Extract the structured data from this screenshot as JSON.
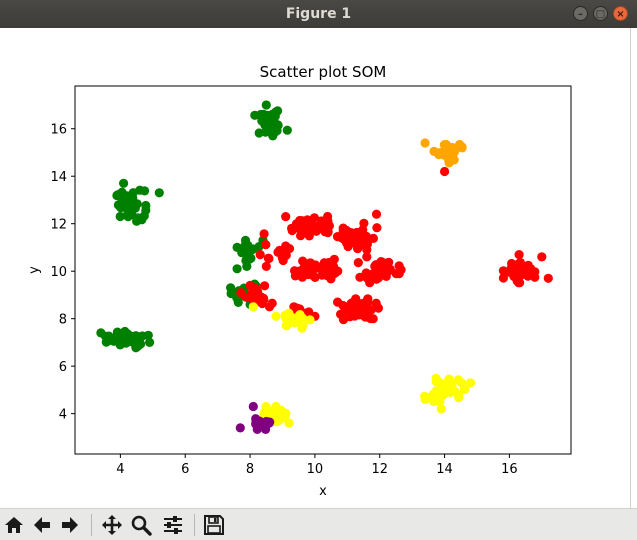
{
  "window": {
    "title": "Figure 1"
  },
  "icons": {
    "minimize": "minimize-icon",
    "maximize": "maximize-icon",
    "close": "close-icon",
    "home": "home-icon",
    "back": "arrow-left-icon",
    "forward": "arrow-right-icon",
    "pan": "pan-icon",
    "zoom": "magnifier-icon",
    "configure": "sliders-icon",
    "save": "floppy-disk-icon"
  },
  "colors": {
    "green": "#008000",
    "red": "#ff0000",
    "orange": "#ffa500",
    "yellow": "#ffff00",
    "purple": "#800080"
  },
  "chart_data": {
    "type": "scatter",
    "title": "Scatter plot SOM",
    "xlabel": "x",
    "ylabel": "y",
    "xlim": [
      2.6,
      17.9
    ],
    "ylim": [
      2.3,
      17.8
    ],
    "xticks": [
      4,
      6,
      8,
      10,
      12,
      14,
      16
    ],
    "yticks": [
      4,
      6,
      8,
      10,
      12,
      14,
      16
    ],
    "grid": false,
    "legend": "none",
    "clusters": [
      {
        "color": "green",
        "center": [
          8.6,
          16.2
        ],
        "spread": [
          0.25,
          0.25
        ],
        "count": 40,
        "extra": [
          [
            8.5,
            17.0
          ],
          [
            8.7,
            15.7
          ]
        ]
      },
      {
        "color": "green",
        "center": [
          4.3,
          12.8
        ],
        "spread": [
          0.22,
          0.3
        ],
        "count": 40,
        "extra": [
          [
            5.2,
            13.3
          ],
          [
            4.1,
            13.7
          ],
          [
            4.5,
            12.1
          ]
        ]
      },
      {
        "color": "green",
        "center": [
          4.2,
          7.1
        ],
        "spread": [
          0.3,
          0.17
        ],
        "count": 38,
        "extra": [
          [
            3.4,
            7.4
          ],
          [
            4.9,
            7.0
          ]
        ]
      },
      {
        "color": "green",
        "center": [
          8.0,
          10.9
        ],
        "spread": [
          0.15,
          0.25
        ],
        "count": 14,
        "extra": [
          [
            8.4,
            11.3
          ],
          [
            7.6,
            11.0
          ],
          [
            7.9,
            10.2
          ]
        ]
      },
      {
        "color": "green",
        "center": [
          7.9,
          9.1
        ],
        "spread": [
          0.22,
          0.3
        ],
        "count": 12,
        "extra": [
          [
            7.4,
            9.3
          ],
          [
            7.6,
            10.1
          ],
          [
            8.0,
            8.6
          ]
        ]
      },
      {
        "color": "red",
        "center": [
          9.9,
          11.9
        ],
        "spread": [
          0.35,
          0.2
        ],
        "count": 38,
        "extra": [
          [
            9.1,
            12.3
          ],
          [
            10.4,
            12.1
          ]
        ]
      },
      {
        "color": "red",
        "center": [
          11.3,
          11.5
        ],
        "spread": [
          0.3,
          0.28
        ],
        "count": 36,
        "extra": [
          [
            11.9,
            12.4
          ],
          [
            11.6,
            10.9
          ]
        ]
      },
      {
        "color": "red",
        "center": [
          10.0,
          10.1
        ],
        "spread": [
          0.32,
          0.22
        ],
        "count": 36,
        "extra": [
          [
            9.4,
            9.8
          ],
          [
            10.6,
            10.5
          ]
        ]
      },
      {
        "color": "red",
        "center": [
          12.0,
          10.0
        ],
        "spread": [
          0.3,
          0.22
        ],
        "count": 34,
        "extra": [
          [
            12.6,
            9.9
          ],
          [
            11.6,
            10.6
          ]
        ]
      },
      {
        "color": "red",
        "center": [
          11.3,
          8.4
        ],
        "spread": [
          0.3,
          0.22
        ],
        "count": 36,
        "extra": [
          [
            10.7,
            8.7
          ],
          [
            11.8,
            8.0
          ]
        ]
      },
      {
        "color": "red",
        "center": [
          8.8,
          10.8
        ],
        "spread": [
          0.3,
          0.35
        ],
        "count": 14,
        "extra": [
          [
            8.5,
            10.2
          ]
        ]
      },
      {
        "color": "red",
        "center": [
          8.2,
          8.9
        ],
        "spread": [
          0.22,
          0.22
        ],
        "count": 18,
        "extra": [
          [
            8.6,
            8.5
          ],
          [
            8.0,
            9.4
          ]
        ]
      },
      {
        "color": "red",
        "center": [
          9.6,
          8.3
        ],
        "spread": [
          0.2,
          0.12
        ],
        "count": 8,
        "extra": [
          [
            10.0,
            8.1
          ]
        ]
      },
      {
        "color": "red",
        "center": [
          16.3,
          10.0
        ],
        "spread": [
          0.22,
          0.22
        ],
        "count": 36,
        "extra": [
          [
            17.2,
            9.7
          ],
          [
            17.0,
            10.6
          ],
          [
            16.3,
            10.7
          ]
        ]
      },
      {
        "color": "orange",
        "center": [
          14.1,
          15.0
        ],
        "spread": [
          0.2,
          0.2
        ],
        "count": 40,
        "extra": [
          [
            13.4,
            15.4
          ]
        ]
      },
      {
        "color": "red",
        "center": [
          14.0,
          14.2
        ],
        "spread": [
          0.0,
          0.0
        ],
        "count": 1,
        "extra": []
      },
      {
        "color": "yellow",
        "center": [
          9.3,
          7.9
        ],
        "spread": [
          0.25,
          0.15
        ],
        "count": 22,
        "extra": [
          [
            8.8,
            8.1
          ],
          [
            9.6,
            7.6
          ]
        ]
      },
      {
        "color": "yellow",
        "center": [
          8.1,
          8.5
        ],
        "spread": [
          0.0,
          0.0
        ],
        "count": 1,
        "extra": []
      },
      {
        "color": "yellow",
        "center": [
          14.0,
          5.0
        ],
        "spread": [
          0.28,
          0.22
        ],
        "count": 44,
        "extra": [
          [
            14.8,
            5.3
          ],
          [
            13.9,
            4.2
          ],
          [
            13.4,
            4.6
          ]
        ]
      },
      {
        "color": "yellow",
        "center": [
          8.8,
          3.9
        ],
        "spread": [
          0.18,
          0.18
        ],
        "count": 22,
        "extra": [
          [
            8.8,
            4.3
          ],
          [
            9.2,
            3.6
          ]
        ]
      },
      {
        "color": "purple",
        "center": [
          8.4,
          3.6
        ],
        "spread": [
          0.15,
          0.12
        ],
        "count": 16,
        "extra": [
          [
            7.7,
            3.4
          ],
          [
            8.1,
            4.3
          ]
        ]
      }
    ]
  }
}
